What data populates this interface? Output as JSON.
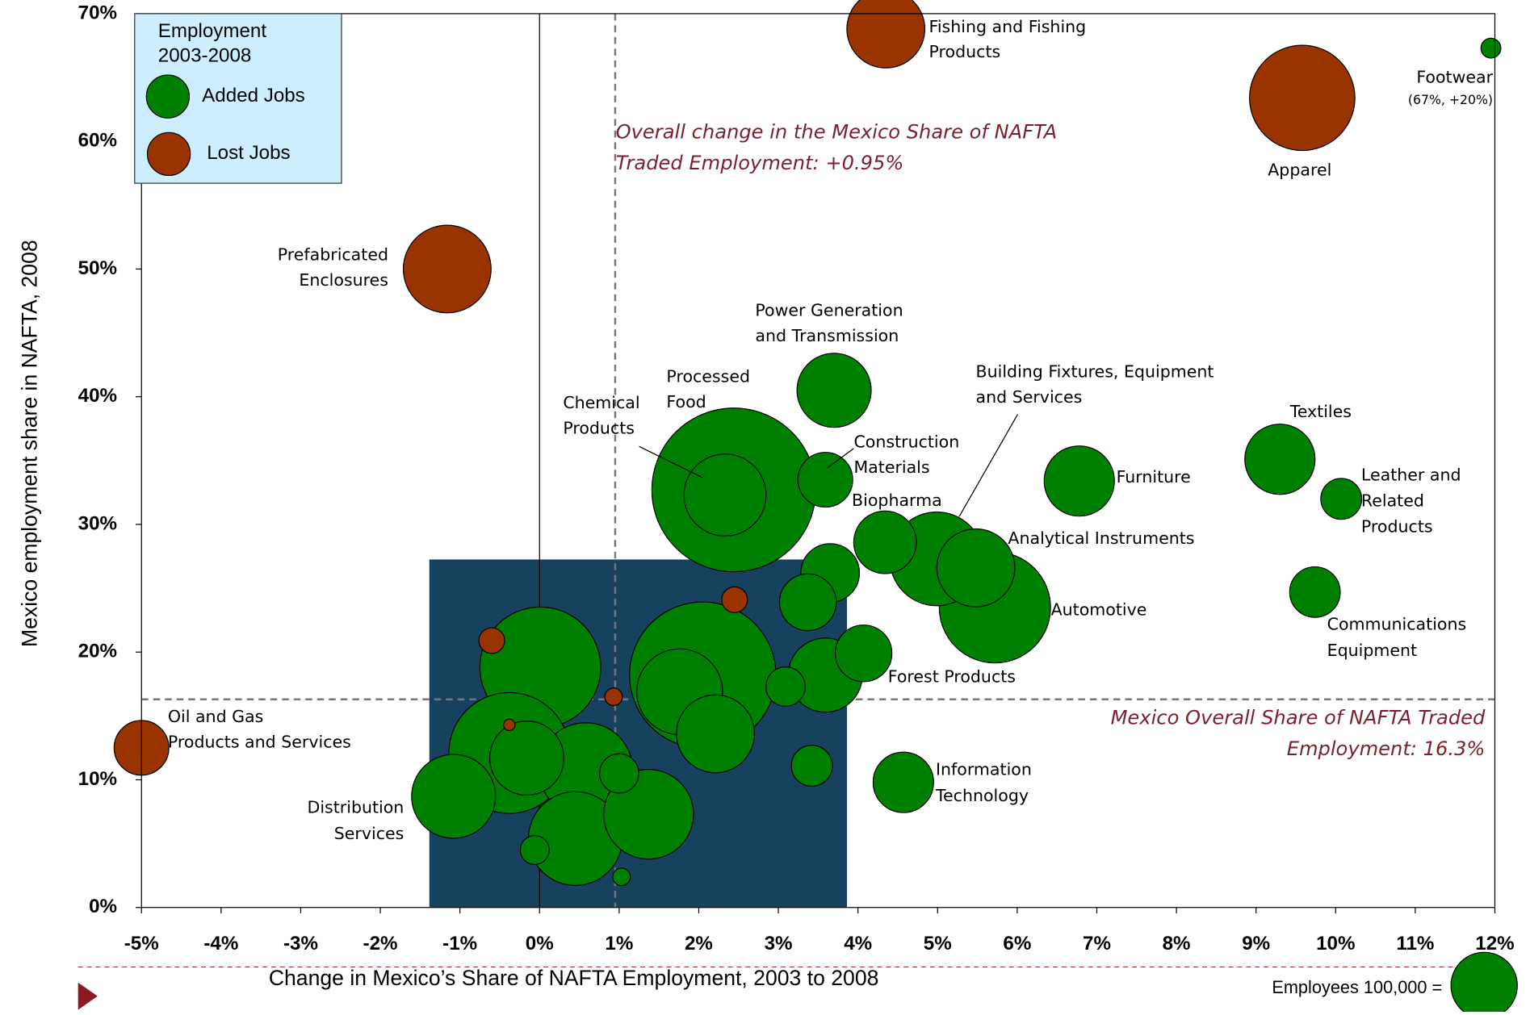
{
  "chart_data": {
    "type": "bubble",
    "xlabel": "Change in Mexico’s Share of NAFTA Employment, 2003 to 2008",
    "ylabel": "Mexico employment share in NAFTA, 2008",
    "xlim": [
      -5,
      12
    ],
    "ylim": [
      0,
      70
    ],
    "xticks": [
      {
        "value": -5,
        "label": "-5%"
      },
      {
        "value": -4,
        "label": "-4%"
      },
      {
        "value": -3,
        "label": "-3%"
      },
      {
        "value": -2,
        "label": "-2%"
      },
      {
        "value": -1,
        "label": "-1%"
      },
      {
        "value": 0,
        "label": "0%"
      },
      {
        "value": 1,
        "label": "1%"
      },
      {
        "value": 2,
        "label": "2%"
      },
      {
        "value": 3,
        "label": "3%"
      },
      {
        "value": 4,
        "label": "4%"
      },
      {
        "value": 5,
        "label": "5%"
      },
      {
        "value": 6,
        "label": "6%"
      },
      {
        "value": 7,
        "label": "7%"
      },
      {
        "value": 8,
        "label": "8%"
      },
      {
        "value": 9,
        "label": "9%"
      },
      {
        "value": 10,
        "label": "10%"
      },
      {
        "value": 11,
        "label": "11%"
      },
      {
        "value": 12,
        "label": "12%"
      }
    ],
    "yticks": [
      {
        "value": 0,
        "label": "0%"
      },
      {
        "value": 10,
        "label": "10%"
      },
      {
        "value": 20,
        "label": "20%"
      },
      {
        "value": 30,
        "label": "30%"
      },
      {
        "value": 40,
        "label": "40%"
      },
      {
        "value": 50,
        "label": "50%"
      },
      {
        "value": 60,
        "label": "60%"
      },
      {
        "value": 70,
        "label": "70%"
      }
    ],
    "legend_title": [
      "Employment",
      "2003-2008"
    ],
    "legend_position": "upper left",
    "size_legend": {
      "text": "Employees  100,000 =",
      "value": 100000
    },
    "reference_lines": {
      "x": 0.95,
      "y": 16.3
    },
    "annotations": [
      [
        "Overall change in the Mexico Share of NAFTA",
        "Traded Employment:  +0.95%"
      ],
      [
        "Mexico Overall Share of NAFTA Traded",
        "Employment: 16.3%"
      ]
    ],
    "series": [
      {
        "name": "Added Jobs",
        "color": "#008000",
        "x": [
          11.95,
          3.7,
          2.44,
          2.33,
          3.59,
          4.34,
          4.99,
          5.48,
          5.72,
          6.78,
          9.3,
          10.07,
          9.74,
          4.07,
          4.57,
          -1.08,
          0.01,
          2.05,
          1.76,
          2.21,
          -0.38,
          -0.16,
          0.58,
          1.0,
          1.37,
          0.45,
          -0.06,
          1.03,
          3.65,
          3.37,
          3.59,
          3.09,
          3.42
        ],
        "values": [
          67.3,
          40.5,
          32.7,
          32.3,
          33.5,
          28.6,
          27.3,
          26.6,
          23.5,
          33.4,
          35.1,
          32.0,
          24.7,
          19.9,
          9.8,
          8.7,
          18.8,
          18.2,
          16.9,
          13.6,
          12.1,
          11.7,
          10.8,
          10.5,
          7.3,
          5.4,
          4.5,
          2.4,
          26.2,
          23.9,
          18.2,
          17.3,
          11.1
        ],
        "sizes": [
          9000,
          125000,
          610000,
          153000,
          68000,
          89000,
          200000,
          138000,
          281000,
          112000,
          112000,
          38000,
          58000,
          73000,
          83000,
          160000,
          332000,
          487000,
          167000,
          138000,
          332000,
          125000,
          200000,
          35000,
          183000,
          200000,
          19000,
          7000,
          78000,
          73000,
          125000,
          35000,
          38000
        ],
        "labels": [
          [
            "Footwear",
            "(67%, +20%)"
          ],
          [
            "Power Generation",
            "and Transmission"
          ],
          [
            "Processed",
            "Food"
          ],
          [
            "Chemical",
            "Products"
          ],
          [
            "Construction",
            "Materials"
          ],
          [
            "Biopharma"
          ],
          [
            "Building Fixtures, Equipment",
            "and Services"
          ],
          [
            "Analytical Instruments"
          ],
          [
            "Automotive"
          ],
          [
            "Furniture"
          ],
          [
            "Textiles"
          ],
          [
            "Leather and",
            "Related",
            "Products"
          ],
          [
            "Communications",
            "Equipment"
          ],
          [
            "Forest Products"
          ],
          [
            "Information",
            "Technology"
          ],
          [
            "Distribution",
            "Services"
          ],
          null,
          null,
          null,
          null,
          null,
          null,
          null,
          null,
          null,
          null,
          null,
          null,
          null,
          null,
          null,
          null,
          null
        ]
      },
      {
        "name": "Lost Jobs",
        "color": "#993300",
        "x": [
          4.35,
          9.58,
          -1.16,
          -5.0,
          2.45,
          -0.6,
          0.93,
          -0.38
        ],
        "values": [
          68.8,
          63.4,
          50.0,
          12.5,
          24.1,
          20.9,
          16.5,
          14.3
        ],
        "sizes": [
          138000,
          252000,
          175000,
          68000,
          15000,
          15000,
          7000,
          3000
        ],
        "labels": [
          [
            "Fishing and Fishing",
            "Products"
          ],
          [
            "Apparel"
          ],
          [
            "Prefabricated",
            "Enclosures"
          ],
          [
            "Oil and Gas",
            "Products and Services"
          ],
          null,
          null,
          null,
          null
        ]
      }
    ]
  }
}
